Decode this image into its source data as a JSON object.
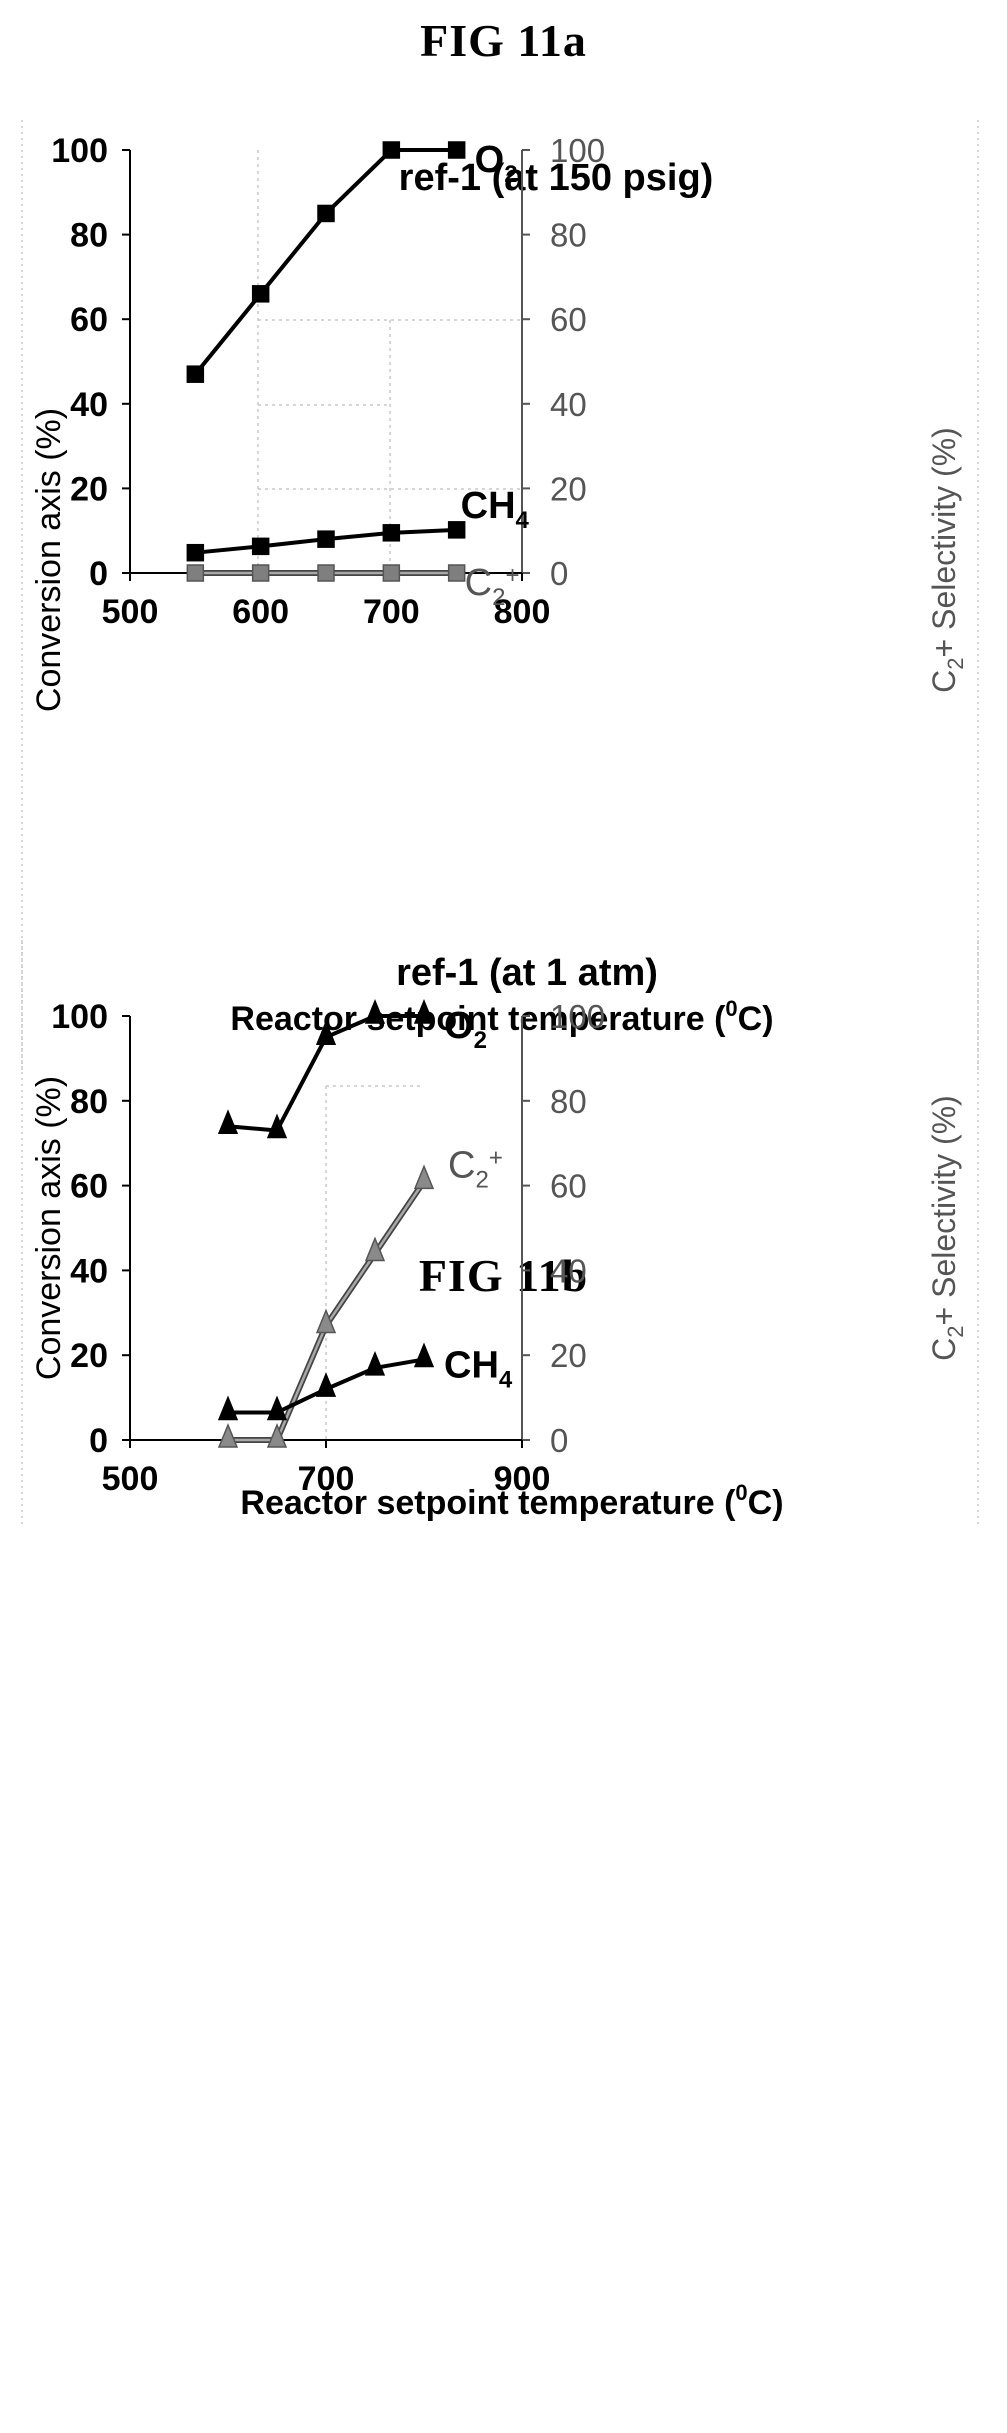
{
  "figures": [
    {
      "label": "FIG 11a"
    },
    {
      "label": "FIG 11b"
    }
  ],
  "chart_data": [
    {
      "type": "line",
      "title": "ref-1 (at 150 psig)",
      "xlabel": "Reactor setpoint temperature (°C)",
      "xlabel_parts": [
        "Reactor setpoint temperature (",
        "0",
        "C)"
      ],
      "ylabel": "Conversion axis (%)",
      "y2label": "C2+ Selectivity (%)",
      "y2label_parts": [
        "C",
        "2",
        "+ Selectivity (%)"
      ],
      "xlim": [
        500,
        800
      ],
      "ylim": [
        0,
        100
      ],
      "y2lim": [
        0,
        100
      ],
      "xticks": [
        500,
        600,
        700,
        800
      ],
      "yticks": [
        0,
        20,
        40,
        60,
        80,
        100
      ],
      "marker": "square",
      "series": [
        {
          "name": "O2",
          "label_main": "O",
          "label_sub": "2",
          "label_sup": "",
          "axis": "left",
          "color": "#000000",
          "x": [
            550,
            600,
            650,
            700,
            750
          ],
          "values": [
            47,
            66,
            85,
            100,
            100
          ]
        },
        {
          "name": "CH4",
          "label_main": "CH",
          "label_sub": "4",
          "label_sup": "",
          "axis": "left",
          "color": "#000000",
          "x": [
            550,
            600,
            650,
            700,
            750
          ],
          "values": [
            4.8,
            6.3,
            8,
            9.5,
            10.2
          ]
        },
        {
          "name": "C2+",
          "label_main": "C",
          "label_sub": "2",
          "label_sup": "+",
          "axis": "right",
          "color": "#7f7f7f",
          "x": [
            550,
            600,
            650,
            700,
            750
          ],
          "values": [
            0,
            0,
            0,
            0,
            0
          ]
        }
      ]
    },
    {
      "type": "line",
      "title": "ref-1 (at 1 atm)",
      "xlabel": "Reactor setpoint temperature (°C)",
      "xlabel_parts": [
        "Reactor setpoint temperature (",
        "0",
        "C)"
      ],
      "ylabel": "Conversion axis (%)",
      "y2label": "C2+ Selectivity (%)",
      "y2label_parts": [
        "C",
        "2",
        "+ Selectivity (%)"
      ],
      "xlim": [
        500,
        900
      ],
      "ylim": [
        0,
        100
      ],
      "y2lim": [
        0,
        100
      ],
      "xticks": [
        500,
        700,
        900
      ],
      "yticks": [
        0,
        20,
        40,
        60,
        80,
        100
      ],
      "marker": "triangle",
      "series": [
        {
          "name": "O2",
          "label_main": "O",
          "label_sub": "2",
          "label_sup": "",
          "axis": "left",
          "color": "#000000",
          "x": [
            600,
            650,
            700,
            750,
            800
          ],
          "values": [
            74,
            73,
            95,
            100,
            100
          ]
        },
        {
          "name": "C2+",
          "label_main": "C",
          "label_sub": "2",
          "label_sup": "+",
          "axis": "right",
          "color": "#7f7f7f",
          "x": [
            600,
            650,
            700,
            750,
            800
          ],
          "values": [
            0,
            0,
            27,
            44,
            61
          ]
        },
        {
          "name": "CH4",
          "label_main": "CH",
          "label_sub": "4",
          "label_sup": "",
          "axis": "left",
          "color": "#000000",
          "x": [
            600,
            650,
            700,
            750,
            800
          ],
          "values": [
            6.5,
            6.5,
            12,
            17,
            19
          ]
        }
      ]
    }
  ]
}
